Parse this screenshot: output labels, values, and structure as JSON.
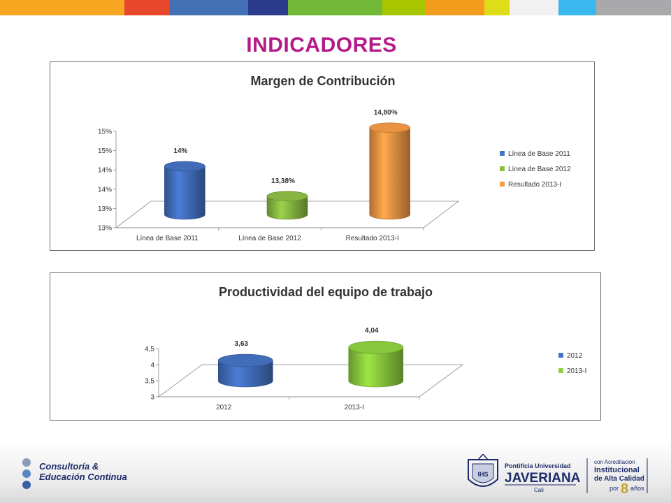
{
  "top_bar_colors": [
    "#f7a621",
    "#e8472c",
    "#4470b5",
    "#2b3c8e",
    "#74b837",
    "#a7c600",
    "#f39b1d",
    "#dfdd1a",
    "#f1f1f1",
    "#38b8ec",
    "#a9a9ab"
  ],
  "slide_title": "INDICADORES",
  "chart_data": [
    {
      "type": "bar",
      "title": "Margen de Contribución",
      "categories": [
        "Línea de Base 2011",
        "Línea de Base 2012",
        "Resultado 2013-I"
      ],
      "values": [
        14.0,
        13.38,
        14.8
      ],
      "data_labels": [
        "14%",
        "13,38%",
        "14,80%"
      ],
      "colors": [
        "#4472c4",
        "#8dbf44",
        "#f59a45"
      ],
      "ylim": [
        13,
        15
      ],
      "y_ticks": [
        13.0,
        13.4,
        13.8,
        14.2,
        14.6,
        15.0
      ],
      "y_tick_labels": [
        "13%",
        "13%",
        "14%",
        "14%",
        "15%",
        "15%"
      ],
      "legend": [
        "Línea de Base 2011",
        "Línea de Base 2012",
        "Resultado 2013-I"
      ],
      "legend_position": "right",
      "grid": false,
      "style": "3d-cylinder"
    },
    {
      "type": "bar",
      "title": "Productividad del equipo de trabajo",
      "categories": [
        "2012",
        "2013-I"
      ],
      "values": [
        3.63,
        4.04
      ],
      "data_labels": [
        "3,63",
        "4,04"
      ],
      "colors": [
        "#4472c4",
        "#8fd13f"
      ],
      "ylim": [
        3,
        4.5
      ],
      "y_ticks": [
        3,
        3.5,
        4,
        4.5
      ],
      "y_tick_labels": [
        "3",
        "3,5",
        "4",
        "4,5"
      ],
      "legend": [
        "2012",
        "2013-I"
      ],
      "legend_position": "right",
      "grid": false,
      "style": "3d-cylinder"
    }
  ],
  "footer": {
    "left_line1": "Consultoría &",
    "left_line2": "Educación Continua",
    "univ_line1": "Pontificia Universidad",
    "univ_name": "JAVERIANA",
    "univ_city": "Cali",
    "accr_line1": "con Acreditación",
    "accr_line2": "Institucional",
    "accr_line3": "de Alta Calidad",
    "accr_por": "por",
    "accr_num": "8",
    "accr_anos": "años"
  }
}
